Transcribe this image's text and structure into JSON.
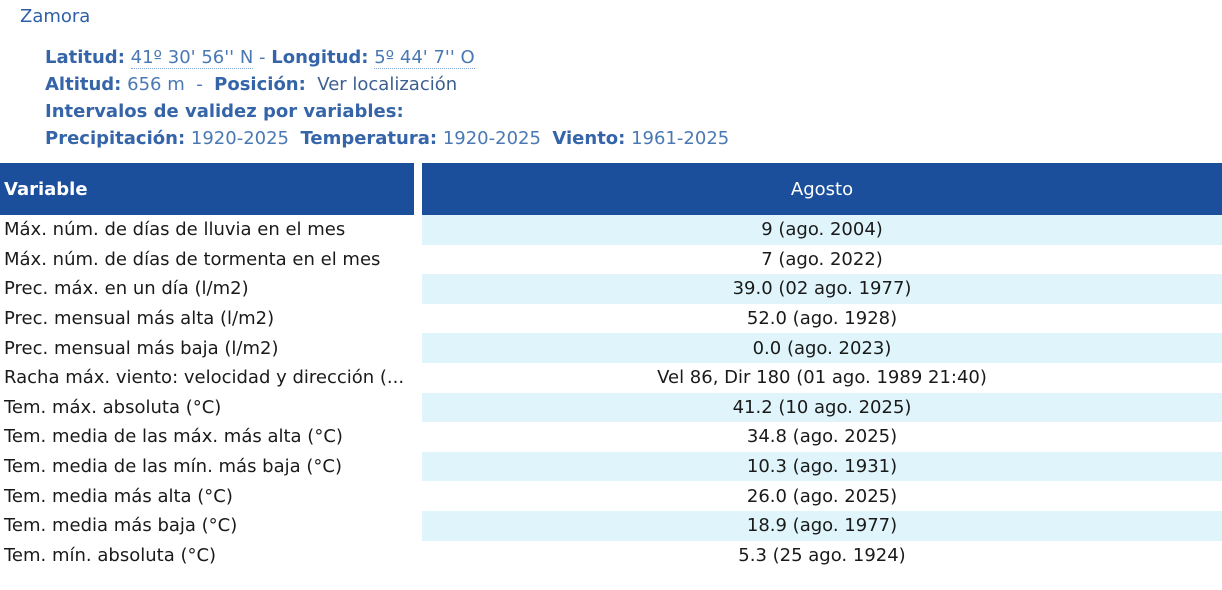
{
  "station": {
    "name": "Zamora"
  },
  "info": {
    "lat_label": "Latitud:",
    "lat_value": "41º 30' 56'' N",
    "sep1": "-",
    "lon_label": "Longitud:",
    "lon_value": "5º 44' 7'' O",
    "alt_label": "Altitud:",
    "alt_value": "656 m",
    "sep2": "-",
    "pos_label": "Posición:",
    "pos_link": "Ver localización",
    "intervals_label": "Intervalos de validez por variables:",
    "prec_label": "Precipitación:",
    "prec_value": "1920-2025",
    "temp_label": "Temperatura:",
    "temp_value": "1920-2025",
    "wind_label": "Viento:",
    "wind_value": "1961-2025"
  },
  "table": {
    "header_variable": "Variable",
    "header_month": "Agosto",
    "rows": [
      {
        "variable": "Máx. núm. de días de lluvia en el mes",
        "value": "9 (ago. 2004)"
      },
      {
        "variable": "Máx. núm. de días de tormenta en el mes",
        "value": "7 (ago. 2022)"
      },
      {
        "variable": "Prec. máx. en un día (l/m2)",
        "value": "39.0 (02 ago. 1977)"
      },
      {
        "variable": "Prec. mensual más alta (l/m2)",
        "value": "52.0 (ago. 1928)"
      },
      {
        "variable": "Prec. mensual más baja (l/m2)",
        "value": "0.0 (ago. 2023)"
      },
      {
        "variable": "Racha máx. viento: velocidad y dirección (...",
        "value": "Vel 86, Dir 180 (01 ago. 1989 21:40)"
      },
      {
        "variable": "Tem. máx. absoluta (°C)",
        "value": "41.2 (10 ago. 2025)"
      },
      {
        "variable": "Tem. media de las máx. más alta (°C)",
        "value": "34.8 (ago. 2025)"
      },
      {
        "variable": "Tem. media de las mín. más baja (°C)",
        "value": "10.3 (ago. 1931)"
      },
      {
        "variable": "Tem. media más alta (°C)",
        "value": "26.0 (ago. 2025)"
      },
      {
        "variable": "Tem. media más baja (°C)",
        "value": "18.9 (ago. 1977)"
      },
      {
        "variable": "Tem. mín. absoluta (°C)",
        "value": "5.3 (25 ago. 1924)"
      }
    ]
  },
  "colors": {
    "header_bg": "#1b4f9c",
    "row_highlight": "#dff5fb",
    "label_color": "#3565a8",
    "value_color": "#4a78b3"
  }
}
